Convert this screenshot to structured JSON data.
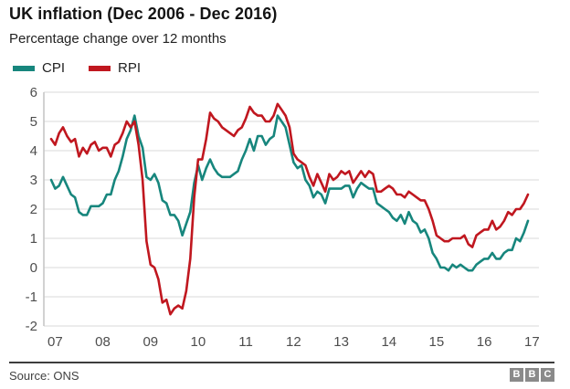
{
  "header": {
    "title": "UK inflation (Dec 2006 - Dec 2016)",
    "subtitle": "Percentage change over 12 months"
  },
  "legend": {
    "items": [
      {
        "label": "CPI",
        "color": "#17867d"
      },
      {
        "label": "RPI",
        "color": "#c0171f"
      }
    ]
  },
  "footer": {
    "source": "Source: ONS",
    "logo_letters": [
      "B",
      "B",
      "C"
    ]
  },
  "chart_data": {
    "type": "line",
    "title": "UK inflation (Dec 2006 - Dec 2016)",
    "subtitle": "Percentage change over 12 months",
    "x_start": "Dec 2006",
    "x_end": "Dec 2016",
    "x_frequency": "monthly",
    "ylim": [
      -2,
      6
    ],
    "y_ticks": [
      6,
      5,
      4,
      3,
      2,
      1,
      0,
      -1,
      -2
    ],
    "x_ticks": [
      {
        "label": "07",
        "i": 1
      },
      {
        "label": "08",
        "i": 13
      },
      {
        "label": "09",
        "i": 25
      },
      {
        "label": "10",
        "i": 37
      },
      {
        "label": "11",
        "i": 49
      },
      {
        "label": "12",
        "i": 61
      },
      {
        "label": "13",
        "i": 73
      },
      {
        "label": "14",
        "i": 85
      },
      {
        "label": "15",
        "i": 97
      },
      {
        "label": "16",
        "i": 109
      },
      {
        "label": "17",
        "i": 121
      }
    ],
    "grid": true,
    "grid_color": "#d9d9d9",
    "axis_color": "#c4c4c4",
    "legend_position": "top-left",
    "series": [
      {
        "name": "CPI",
        "color": "#17867d",
        "values": [
          3.0,
          2.7,
          2.8,
          3.1,
          2.8,
          2.5,
          2.4,
          1.9,
          1.8,
          1.8,
          2.1,
          2.1,
          2.1,
          2.2,
          2.5,
          2.5,
          3.0,
          3.3,
          3.8,
          4.4,
          4.7,
          5.2,
          4.5,
          4.1,
          3.1,
          3.0,
          3.2,
          2.9,
          2.3,
          2.2,
          1.8,
          1.8,
          1.6,
          1.1,
          1.5,
          1.9,
          2.9,
          3.5,
          3.0,
          3.4,
          3.7,
          3.4,
          3.2,
          3.1,
          3.1,
          3.1,
          3.2,
          3.3,
          3.7,
          4.0,
          4.4,
          4.0,
          4.5,
          4.5,
          4.2,
          4.4,
          4.5,
          5.2,
          5.0,
          4.8,
          4.2,
          3.6,
          3.4,
          3.5,
          3.0,
          2.8,
          2.4,
          2.6,
          2.5,
          2.2,
          2.7,
          2.7,
          2.7,
          2.7,
          2.8,
          2.8,
          2.4,
          2.7,
          2.9,
          2.8,
          2.7,
          2.7,
          2.2,
          2.1,
          2.0,
          1.9,
          1.7,
          1.6,
          1.8,
          1.5,
          1.9,
          1.6,
          1.5,
          1.2,
          1.3,
          1.0,
          0.5,
          0.3,
          0.0,
          0.0,
          -0.1,
          0.1,
          0.0,
          0.1,
          0.0,
          -0.1,
          -0.1,
          0.1,
          0.2,
          0.3,
          0.3,
          0.5,
          0.3,
          0.3,
          0.5,
          0.6,
          0.6,
          1.0,
          0.9,
          1.2,
          1.6
        ]
      },
      {
        "name": "RPI",
        "color": "#c0171f",
        "values": [
          4.4,
          4.2,
          4.6,
          4.8,
          4.5,
          4.3,
          4.4,
          3.8,
          4.1,
          3.9,
          4.2,
          4.3,
          4.0,
          4.1,
          4.1,
          3.8,
          4.2,
          4.3,
          4.6,
          5.0,
          4.8,
          5.0,
          4.2,
          3.0,
          0.9,
          0.1,
          0.0,
          -0.4,
          -1.2,
          -1.1,
          -1.6,
          -1.4,
          -1.3,
          -1.4,
          -0.8,
          0.3,
          2.4,
          3.7,
          3.7,
          4.4,
          5.3,
          5.1,
          5.0,
          4.8,
          4.7,
          4.6,
          4.5,
          4.7,
          4.8,
          5.1,
          5.5,
          5.3,
          5.2,
          5.2,
          5.0,
          5.0,
          5.2,
          5.6,
          5.4,
          5.2,
          4.8,
          3.9,
          3.7,
          3.6,
          3.5,
          3.1,
          2.8,
          3.2,
          2.9,
          2.6,
          3.2,
          3.0,
          3.1,
          3.3,
          3.2,
          3.3,
          2.9,
          3.1,
          3.3,
          3.1,
          3.3,
          3.2,
          2.6,
          2.6,
          2.7,
          2.8,
          2.7,
          2.5,
          2.5,
          2.4,
          2.6,
          2.5,
          2.4,
          2.3,
          2.3,
          2.0,
          1.6,
          1.1,
          1.0,
          0.9,
          0.9,
          1.0,
          1.0,
          1.0,
          1.1,
          0.8,
          0.7,
          1.1,
          1.2,
          1.3,
          1.3,
          1.6,
          1.3,
          1.4,
          1.6,
          1.9,
          1.8,
          2.0,
          2.0,
          2.2,
          2.5
        ]
      }
    ]
  }
}
